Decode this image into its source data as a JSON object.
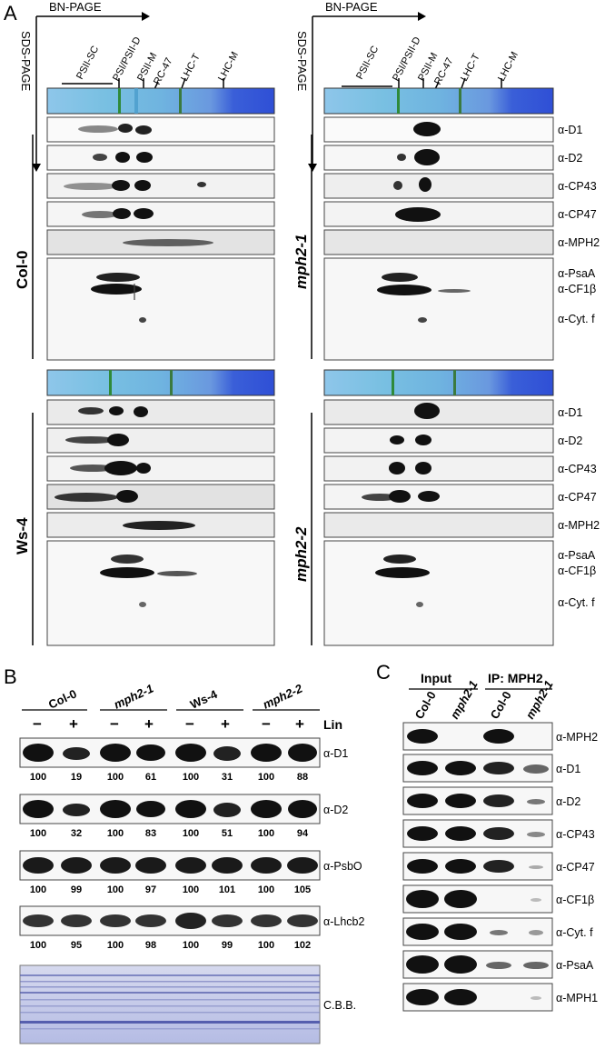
{
  "panels": {
    "A": {
      "letter": "A",
      "bn_label": "BN-PAGE",
      "sds_label": "SDS-PAGE",
      "complexes": [
        "PSII-SC",
        "PSI/PSII-D",
        "PSII-M",
        "RC-47",
        "LHC-T",
        "LHC-M"
      ],
      "genotypes": [
        "Col-0",
        "mph2-1",
        "Ws-4",
        "mph2-2"
      ],
      "blot_labels": [
        "α-D1",
        "α-D2",
        "α-CP43",
        "α-CP47",
        "α-MPH2"
      ],
      "stain_labels": [
        "α-PsaA",
        "α-CF1β",
        "α-Cyt. f"
      ]
    },
    "B": {
      "letter": "B",
      "genotypes": [
        "Col-0",
        "mph2-1",
        "Ws-4",
        "mph2-2"
      ],
      "treatment": [
        "−",
        "+"
      ],
      "treatment_label": "Lin",
      "stain_label": "C.B.B.",
      "blots": [
        {
          "label": "α-D1",
          "values": [
            "100",
            "19",
            "100",
            "61",
            "100",
            "31",
            "100",
            "88"
          ]
        },
        {
          "label": "α-D2",
          "values": [
            "100",
            "32",
            "100",
            "83",
            "100",
            "51",
            "100",
            "94"
          ]
        },
        {
          "label": "α-PsbO",
          "values": [
            "100",
            "99",
            "100",
            "97",
            "100",
            "101",
            "100",
            "105"
          ]
        },
        {
          "label": "α-Lhcb2",
          "values": [
            "100",
            "95",
            "100",
            "98",
            "100",
            "99",
            "100",
            "102"
          ]
        }
      ]
    },
    "C": {
      "letter": "C",
      "group_input": "Input",
      "group_ip": "IP: MPH2",
      "lanes": [
        "Col-0",
        "mph2-1",
        "Col-0",
        "mph2-1"
      ],
      "blot_labels": [
        "α-MPH2",
        "α-D1",
        "α-D2",
        "α-CP43",
        "α-CP47",
        "α-CF1β",
        "α-Cyt. f",
        "α-PsaA",
        "α-MPH1"
      ]
    }
  }
}
